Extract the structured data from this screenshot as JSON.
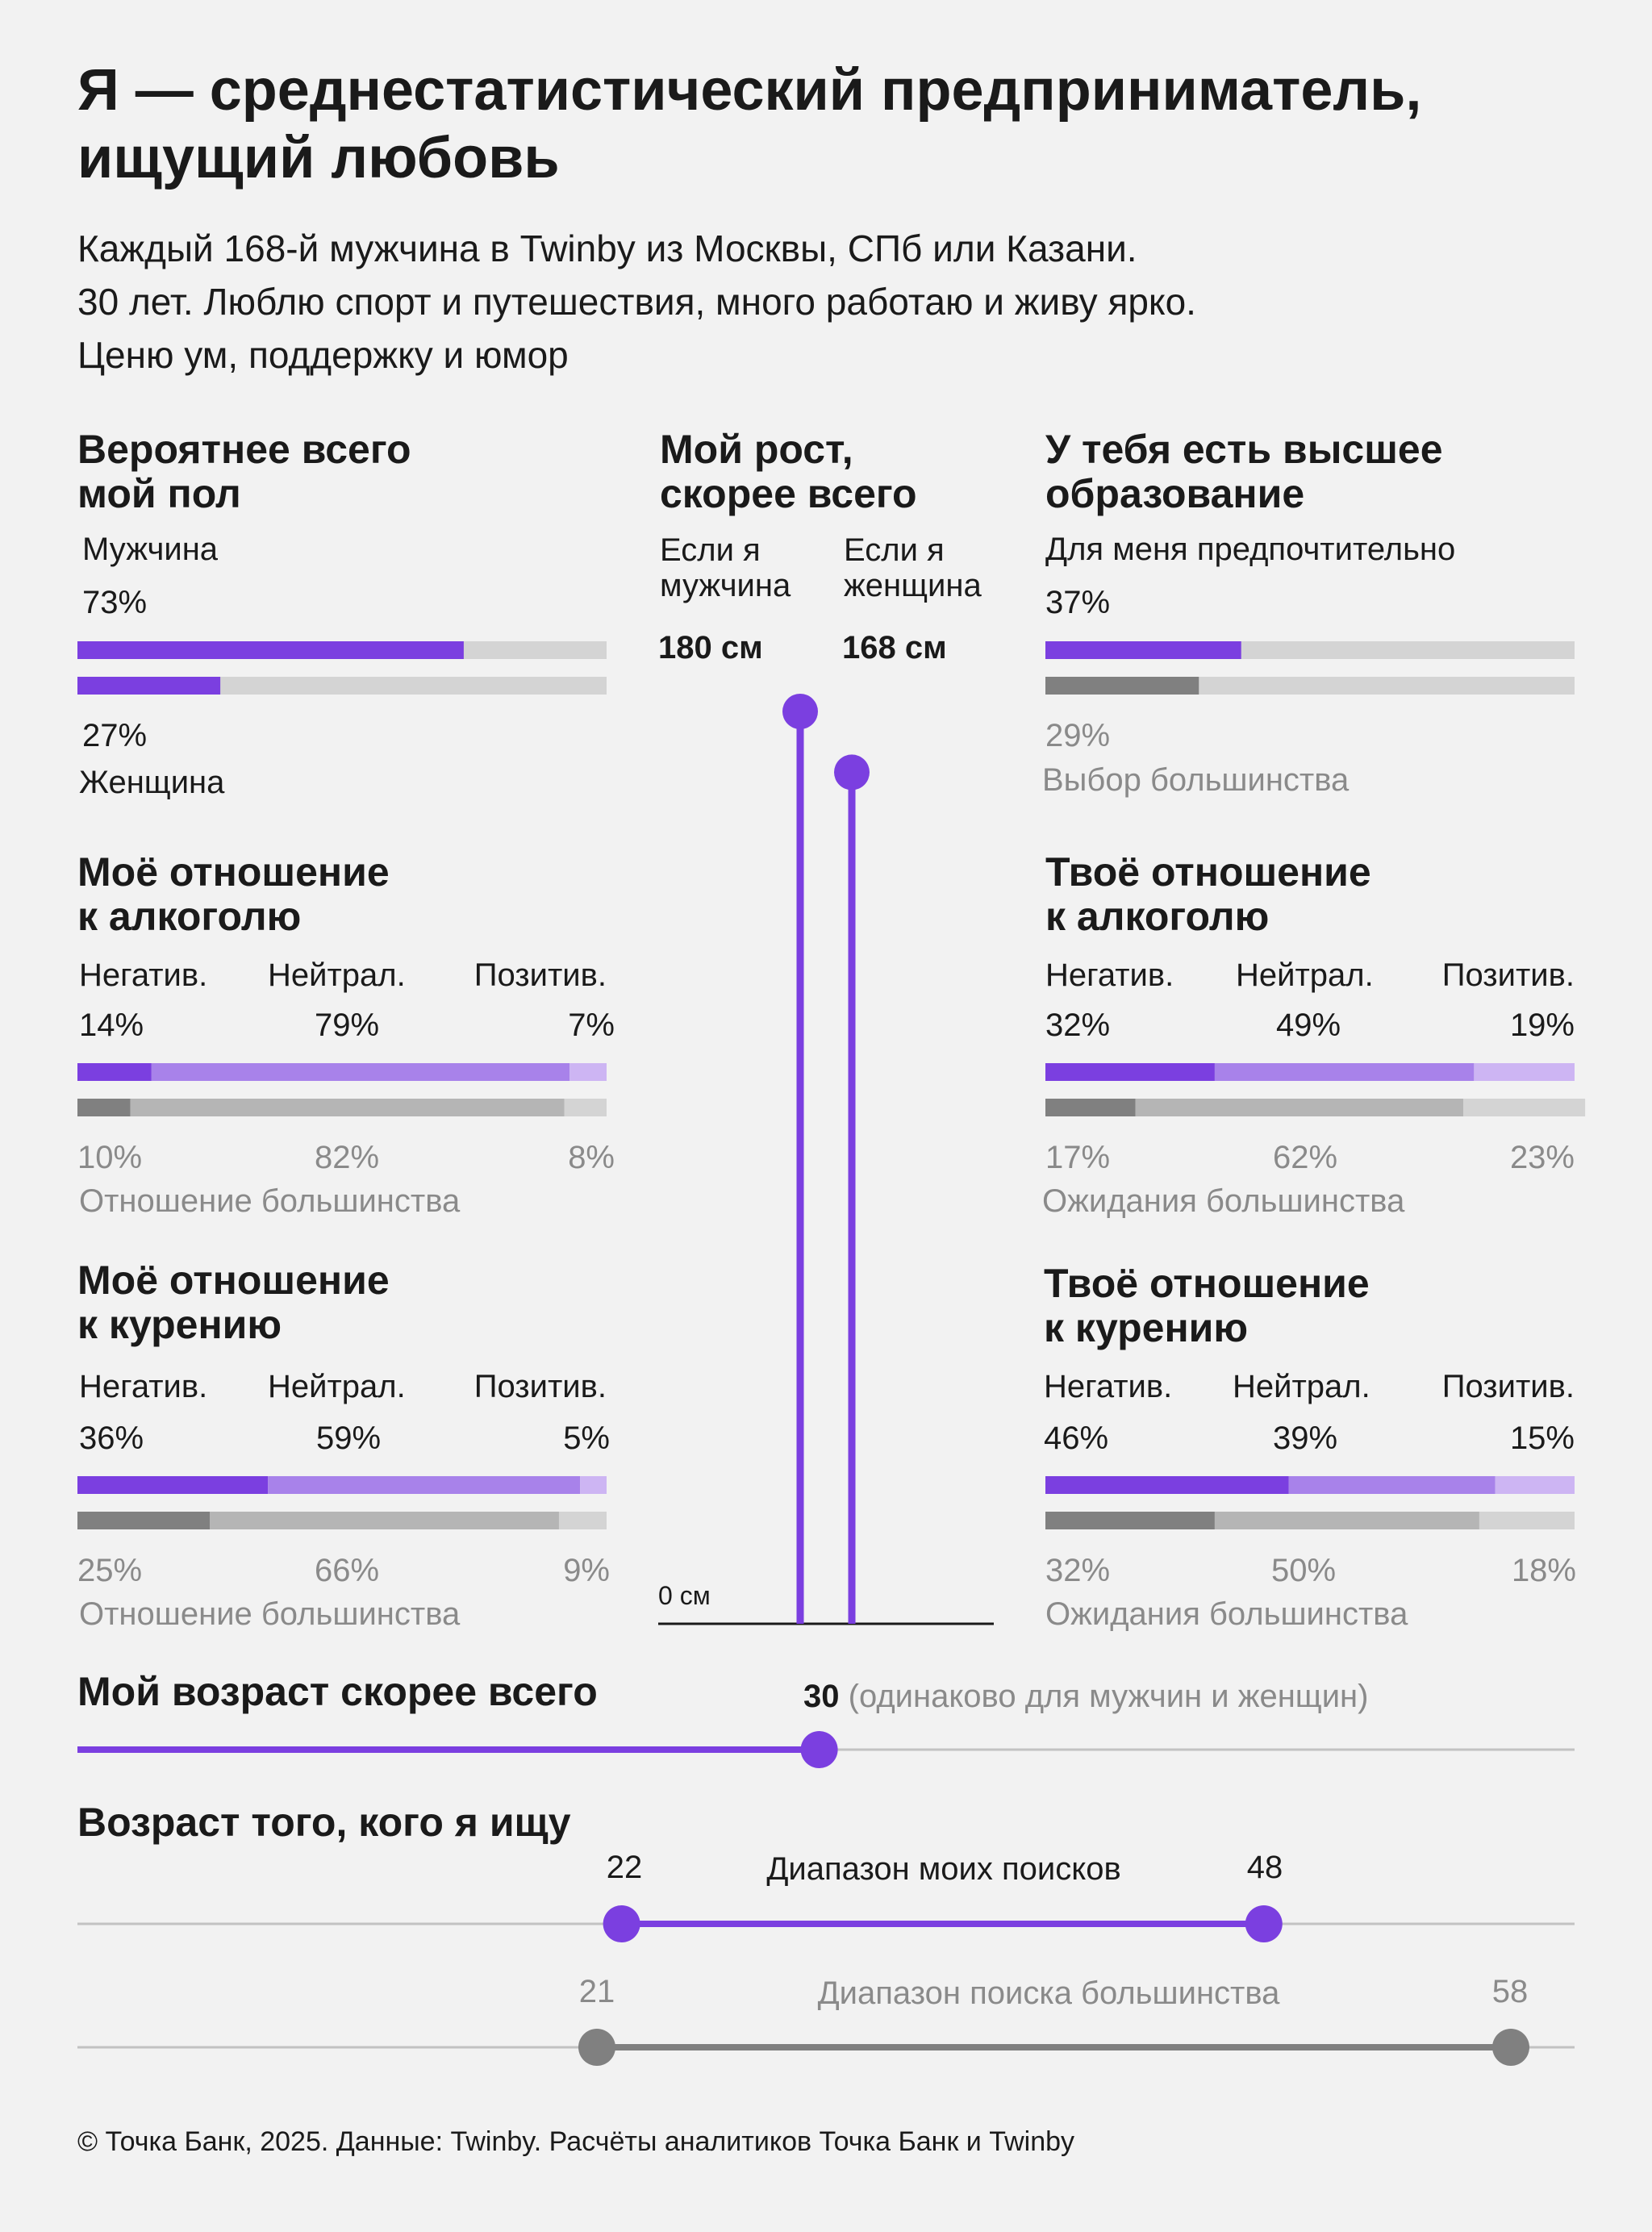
{
  "title_line1": "Я — среднестатистический предприниматель,",
  "title_line2": "ищущий любовь",
  "subtitle_line1": "Каждый 168-й мужчина в Twinby из Москвы, СПб или Казани.",
  "subtitle_line2": "30 лет. Люблю спорт и путешествия, много работаю и живу ярко.",
  "subtitle_line3": "Ценю ум, поддержку и юмор",
  "colors": {
    "purple": "#7b3fe0",
    "purple_mid": "#a882ea",
    "purple_light": "#cdb5f3",
    "gray_dark": "#808080",
    "gray_mid": "#b5b5b5",
    "gray_light": "#d4d4d4",
    "track": "#d4d4d4"
  },
  "gender": {
    "title_line1": "Вероятнее всего",
    "title_line2": "мой пол",
    "male_label": "Мужчина",
    "male_pct": "73%",
    "female_pct": "27%",
    "female_label": "Женщина"
  },
  "height": {
    "title_line1": "Мой рост,",
    "title_line2": "скорее всего",
    "male_cond_line1": "Если я",
    "male_cond_line2": "мужчина",
    "female_cond_line1": "Если я",
    "female_cond_line2": "женщина",
    "male_value": "180 см",
    "female_value": "168 см",
    "zero_label": "0 см"
  },
  "education": {
    "title_line1": "У тебя есть высшее",
    "title_line2": "образование",
    "mine_label": "Для меня предпочтительно",
    "mine_pct": "37%",
    "majority_pct": "29%",
    "majority_label": "Выбор большинства"
  },
  "my_alcohol": {
    "title_line1": "Моё отношение",
    "title_line2": "к алкоголю",
    "cat1": "Негатив.",
    "cat2": "Нейтрал.",
    "cat3": "Позитив.",
    "mine": [
      "14%",
      "79%",
      "7%"
    ],
    "majority": [
      "10%",
      "82%",
      "8%"
    ],
    "majority_label": "Отношение большинства"
  },
  "your_alcohol": {
    "title_line1": "Твоё отношение",
    "title_line2": "к алкоголю",
    "cat1": "Негатив.",
    "cat2": "Нейтрал.",
    "cat3": "Позитив.",
    "mine": [
      "32%",
      "49%",
      "19%"
    ],
    "majority": [
      "17%",
      "62%",
      "23%"
    ],
    "majority_label": "Ожидания большинства"
  },
  "my_smoking": {
    "title_line1": "Моё отношение",
    "title_line2": "к курению",
    "cat1": "Негатив.",
    "cat2": "Нейтрал.",
    "cat3": "Позитив.",
    "mine": [
      "36%",
      "59%",
      "5%"
    ],
    "majority": [
      "25%",
      "66%",
      "9%"
    ],
    "majority_label": "Отношение большинства"
  },
  "your_smoking": {
    "title_line1": "Твоё отношение",
    "title_line2": "к курению",
    "cat1": "Негатив.",
    "cat2": "Нейтрал.",
    "cat3": "Позитив.",
    "mine": [
      "46%",
      "39%",
      "15%"
    ],
    "majority": [
      "32%",
      "50%",
      "18%"
    ],
    "majority_label": "Ожидания большинства"
  },
  "age": {
    "title": "Мой возраст скорее всего",
    "value": "30",
    "note": "(одинаково для мужчин и женщин)"
  },
  "search_age": {
    "title": "Возраст того, кого я ищу",
    "my_min": "22",
    "my_max": "48",
    "my_label": "Диапазон моих поисков",
    "maj_min": "21",
    "maj_max": "58",
    "maj_label": "Диапазон поиска большинства"
  },
  "chart_data": [
    {
      "type": "bar",
      "title": "Вероятнее всего мой пол",
      "categories": [
        "Мужчина",
        "Женщина"
      ],
      "values": [
        73,
        27
      ]
    },
    {
      "type": "bar",
      "title": "У тебя есть высшее образование",
      "series": [
        {
          "name": "Для меня предпочтительно",
          "values": [
            37
          ]
        },
        {
          "name": "Выбор большинства",
          "values": [
            29
          ]
        }
      ]
    },
    {
      "type": "bar",
      "title": "Моё отношение к алкоголю",
      "categories": [
        "Негатив.",
        "Нейтрал.",
        "Позитив."
      ],
      "series": [
        {
          "values": [
            14,
            79,
            7
          ]
        },
        {
          "name": "Отношение большинства",
          "values": [
            10,
            82,
            8
          ]
        }
      ]
    },
    {
      "type": "bar",
      "title": "Твоё отношение к алкоголю",
      "categories": [
        "Негатив.",
        "Нейтрал.",
        "Позитив."
      ],
      "series": [
        {
          "values": [
            32,
            49,
            19
          ]
        },
        {
          "name": "Ожидания большинства",
          "values": [
            17,
            62,
            23
          ]
        }
      ]
    },
    {
      "type": "bar",
      "title": "Моё отношение к курению",
      "categories": [
        "Негатив.",
        "Нейтрал.",
        "Позитив."
      ],
      "series": [
        {
          "values": [
            36,
            59,
            5
          ]
        },
        {
          "name": "Отношение большинства",
          "values": [
            25,
            66,
            9
          ]
        }
      ]
    },
    {
      "type": "bar",
      "title": "Твоё отношение к курению",
      "categories": [
        "Негатив.",
        "Нейтрал.",
        "Позитив."
      ],
      "series": [
        {
          "values": [
            46,
            39,
            15
          ]
        },
        {
          "name": "Ожидания большинства",
          "values": [
            32,
            50,
            18
          ]
        }
      ]
    },
    {
      "type": "bar",
      "title": "Мой рост, скорее всего",
      "categories": [
        "Если я мужчина",
        "Если я женщина"
      ],
      "values": [
        180,
        168
      ],
      "ylim": [
        0,
        180
      ]
    },
    {
      "type": "line",
      "title": "Мой возраст скорее всего",
      "values": [
        30
      ],
      "xlim": [
        0,
        60
      ]
    },
    {
      "type": "line",
      "title": "Возраст того, кого я ищу",
      "series": [
        {
          "name": "Диапазон моих поисков",
          "x": [
            22,
            48
          ]
        },
        {
          "name": "Диапазон поиска большинства",
          "x": [
            21,
            58
          ]
        }
      ]
    }
  ],
  "footer": "© Точка Банк, 2025. Данные: Twinby. Расчёты аналитиков Точка Банк и Twinby"
}
